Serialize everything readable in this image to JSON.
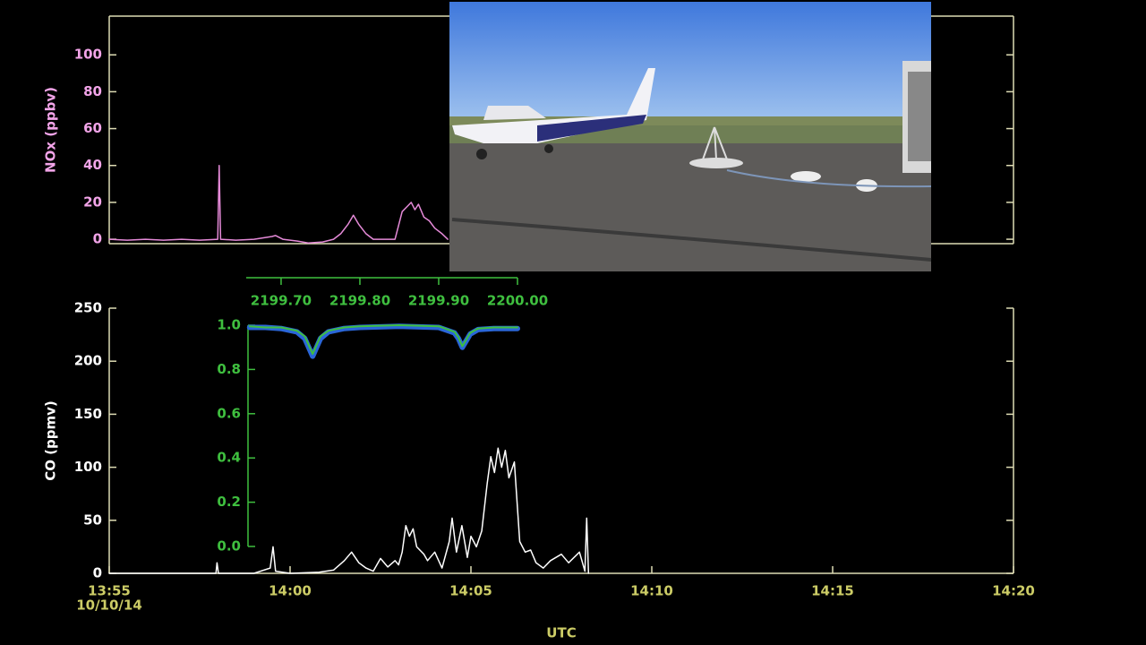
{
  "chart_data": [
    {
      "type": "line",
      "ylabel": "NOx (ppbv)",
      "label_color": "#f2a4e8",
      "axis_color": "#dedcb4",
      "xlim": [
        835,
        860
      ],
      "ylim": [
        -2.4,
        121
      ],
      "yticks": [
        0,
        20,
        40,
        60,
        80,
        100
      ],
      "x": [
        835,
        835.5,
        836,
        836.5,
        837,
        837.5,
        838,
        838.04,
        838.08,
        838.5,
        839,
        839.5,
        839.6,
        839.8,
        840.2,
        840.5,
        840.9,
        841.2,
        841.4,
        841.6,
        841.75,
        841.9,
        842.1,
        842.3,
        842.6,
        842.9,
        843.1,
        843.25,
        843.35,
        843.45,
        843.55,
        843.7,
        843.85,
        844,
        844.2,
        844.36
      ],
      "series": [
        {
          "color": "#e58ad8",
          "values": [
            0,
            -0.5,
            0,
            -0.5,
            0,
            -0.5,
            0,
            40,
            0,
            -0.5,
            0,
            1.5,
            2,
            0,
            -1,
            -2,
            -1.5,
            0,
            3,
            8,
            13,
            8,
            3,
            0,
            0,
            0,
            15,
            18,
            20,
            16,
            19,
            12,
            10,
            6,
            3,
            0
          ]
        }
      ]
    },
    {
      "type": "line",
      "ylabel": "CO (ppmv)",
      "xlabel": "UTC",
      "x_sublabel": "10/10/14",
      "label_color": "#ffffff",
      "tick_color": "#cccc66",
      "axis_color": "#dedcb4",
      "xlim": [
        835,
        860
      ],
      "ylim": [
        0,
        250
      ],
      "yticks": [
        0,
        50,
        100,
        150,
        200,
        250
      ],
      "xticks": [
        {
          "value": 835,
          "label": "13:55"
        },
        {
          "value": 840,
          "label": "14:00"
        },
        {
          "value": 845,
          "label": "14:05"
        },
        {
          "value": 850,
          "label": "14:10"
        },
        {
          "value": 855,
          "label": "14:15"
        },
        {
          "value": 860,
          "label": "14:20"
        }
      ],
      "x": [
        835,
        836,
        837,
        837.95,
        837.98,
        838.02,
        839,
        839.45,
        839.53,
        839.6,
        840,
        840.8,
        841.2,
        841.5,
        841.7,
        841.9,
        842.1,
        842.3,
        842.5,
        842.7,
        842.9,
        843,
        843.1,
        843.2,
        843.3,
        843.4,
        843.5,
        843.7,
        843.8,
        844,
        844.2,
        844.4,
        844.48,
        844.6,
        844.75,
        844.9,
        845,
        845.15,
        845.3,
        845.45,
        845.55,
        845.65,
        845.75,
        845.85,
        845.95,
        846.05,
        846.2,
        846.35,
        846.5,
        846.65,
        846.8,
        847,
        847.2,
        847.5,
        847.7,
        848,
        848.15,
        848.2,
        848.25
      ],
      "series": [
        {
          "color": "#ffffff",
          "values": [
            0,
            0,
            0,
            0,
            10,
            0,
            0,
            5,
            25,
            2,
            0,
            1,
            3,
            12,
            20,
            10,
            5,
            2,
            14,
            6,
            12,
            8,
            20,
            45,
            35,
            42,
            25,
            18,
            12,
            20,
            5,
            30,
            52,
            20,
            45,
            15,
            35,
            25,
            40,
            85,
            110,
            95,
            118,
            100,
            116,
            90,
            105,
            30,
            20,
            22,
            10,
            5,
            12,
            18,
            10,
            20,
            2,
            52,
            0
          ]
        }
      ]
    },
    {
      "type": "line",
      "label_color": "#3fbf3f",
      "axis_color": "#3fbf3f",
      "xlim": [
        2199.658,
        2200.0
      ],
      "ylim": [
        0,
        1
      ],
      "xticks": [
        {
          "value": 2199.7,
          "label": "2199.70"
        },
        {
          "value": 2199.8,
          "label": "2199.80"
        },
        {
          "value": 2199.9,
          "label": "2199.90"
        },
        {
          "value": 2200.0,
          "label": "2200.00"
        }
      ],
      "yticks": [
        {
          "value": 0,
          "label": "0.0"
        },
        {
          "value": 0.2,
          "label": "0.2"
        },
        {
          "value": 0.4,
          "label": "0.4"
        },
        {
          "value": 0.6,
          "label": "0.6"
        },
        {
          "value": 0.8,
          "label": "0.8"
        },
        {
          "value": 1,
          "label": "1.0"
        }
      ],
      "x": [
        2199.66,
        2199.68,
        2199.7,
        2199.72,
        2199.73,
        2199.735,
        2199.74,
        2199.745,
        2199.75,
        2199.76,
        2199.78,
        2199.8,
        2199.85,
        2199.9,
        2199.92,
        2199.925,
        2199.93,
        2199.935,
        2199.94,
        2199.95,
        2199.97,
        2200.0
      ],
      "series": [
        {
          "color": "#2a66d8",
          "width": 6,
          "values": [
            0.99,
            0.99,
            0.985,
            0.97,
            0.94,
            0.9,
            0.86,
            0.9,
            0.94,
            0.97,
            0.985,
            0.99,
            0.995,
            0.99,
            0.965,
            0.94,
            0.9,
            0.93,
            0.96,
            0.98,
            0.985,
            0.985
          ]
        },
        {
          "color": "#3fbf3f",
          "width": 2,
          "values": [
            0.995,
            0.99,
            0.99,
            0.975,
            0.95,
            0.91,
            0.87,
            0.91,
            0.95,
            0.975,
            0.99,
            0.995,
            1.0,
            0.995,
            0.97,
            0.945,
            0.905,
            0.935,
            0.965,
            0.985,
            0.99,
            0.99
          ]
        }
      ]
    }
  ]
}
